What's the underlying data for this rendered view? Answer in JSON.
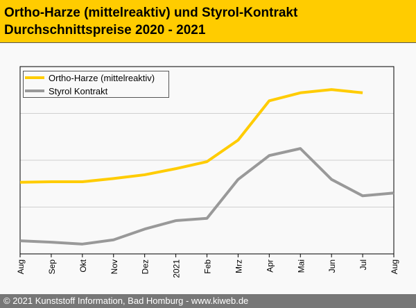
{
  "header": {
    "title_line1": "Ortho-Harze (mittelreaktiv) und Styrol-Kontrakt",
    "title_line2": "Durchschnittspreise 2020 - 2021"
  },
  "footer": {
    "text": "© 2021 Kunststoff Information, Bad Homburg - www.kiweb.de"
  },
  "chart_data": {
    "type": "line",
    "title": "Ortho-Harze (mittelreaktiv) und Styrol-Kontrakt Durchschnittspreise 2020 - 2021",
    "xlabel": "",
    "ylabel": "",
    "categories": [
      "Aug",
      "Sep",
      "Okt",
      "Nov",
      "Dez",
      "2021",
      "Feb",
      "Mrz",
      "Apr",
      "Mai",
      "Jun",
      "Jul",
      "Aug"
    ],
    "ylim": [
      0,
      4
    ],
    "y_note": "no y tick labels shown; values in relative gridline units",
    "grid": true,
    "legend": "top-left",
    "series": [
      {
        "name": "Ortho-Harze (mittelreaktiv)",
        "color": "#ffcc00",
        "values": [
          1.53,
          1.54,
          1.54,
          1.61,
          1.69,
          1.82,
          1.97,
          2.43,
          3.27,
          3.44,
          3.51,
          3.44,
          null
        ]
      },
      {
        "name": "Styrol Kontrakt",
        "color": "#999999",
        "values": [
          0.28,
          0.25,
          0.21,
          0.3,
          0.53,
          0.71,
          0.76,
          1.59,
          2.1,
          2.25,
          1.59,
          1.24,
          1.3
        ]
      }
    ]
  }
}
